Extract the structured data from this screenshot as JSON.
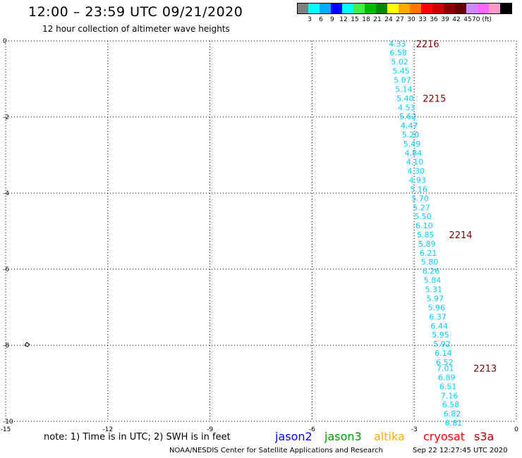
{
  "title": "12:00 – 23:59 UTC 09/21/2020",
  "subtitle": "12 hour collection of altimeter wave heights",
  "colorbar": {
    "colors": [
      "#808080",
      "#00ffff",
      "#00aaff",
      "#0000ff",
      "#00ffff",
      "#44ee44",
      "#00bb00",
      "#008800",
      "#ffff00",
      "#ffaa00",
      "#ff7700",
      "#ff0000",
      "#cc0000",
      "#880000",
      "#660000",
      "#cc88ff",
      "#ff66ff",
      "#ff99cc",
      "#000000"
    ],
    "labels": [
      "3",
      "6",
      "9",
      "12",
      "15",
      "18",
      "21",
      "24",
      "27",
      "30",
      "33",
      "36",
      "39",
      "42",
      "45",
      "70 (ft)"
    ]
  },
  "axes": {
    "x_ticks": [
      "-15",
      "-12",
      "-9",
      "-6",
      "-3",
      "0"
    ],
    "y_ticks": [
      "0",
      "-2",
      "-4",
      "-6",
      "-8",
      "-10"
    ],
    "xlim": [
      -15,
      0
    ],
    "ylim": [
      -10,
      0
    ]
  },
  "chart_data": {
    "type": "scatter",
    "description_units": "longitude (deg) vs latitude (deg); labels are significant wave height (ft)",
    "series": [
      {
        "color": "#00ccff",
        "points": [
          {
            "lon": -3.75,
            "lat": -0.07,
            "swh": "4.33"
          },
          {
            "lon": -3.72,
            "lat": -0.31,
            "swh": "6.58"
          },
          {
            "lon": -3.68,
            "lat": -0.55,
            "swh": "5.02"
          },
          {
            "lon": -3.64,
            "lat": -0.79,
            "swh": "5.45"
          },
          {
            "lon": -3.6,
            "lat": -1.03,
            "swh": "5.07"
          },
          {
            "lon": -3.56,
            "lat": -1.27,
            "swh": "5.14"
          },
          {
            "lon": -3.52,
            "lat": -1.51,
            "swh": "5.40"
          },
          {
            "lon": -3.48,
            "lat": -1.75,
            "swh": "4.53"
          },
          {
            "lon": -3.44,
            "lat": -1.98,
            "swh": "5.62"
          },
          {
            "lon": -3.4,
            "lat": -2.22,
            "swh": "4.47"
          },
          {
            "lon": -3.36,
            "lat": -2.46,
            "swh": "5.20"
          },
          {
            "lon": -3.32,
            "lat": -2.7,
            "swh": "5.49"
          },
          {
            "lon": -3.28,
            "lat": -2.94,
            "swh": "4.84"
          },
          {
            "lon": -3.24,
            "lat": -3.18,
            "swh": "4.10"
          },
          {
            "lon": -3.2,
            "lat": -3.42,
            "swh": "4.30"
          },
          {
            "lon": -3.16,
            "lat": -3.66,
            "swh": "4.93"
          },
          {
            "lon": -3.12,
            "lat": -3.9,
            "swh": "5.16"
          },
          {
            "lon": -3.08,
            "lat": -4.14,
            "swh": "5.70"
          },
          {
            "lon": -3.04,
            "lat": -4.38,
            "swh": "5.27"
          },
          {
            "lon": -3.0,
            "lat": -4.61,
            "swh": "5.50"
          },
          {
            "lon": -2.96,
            "lat": -4.85,
            "swh": "6.10"
          },
          {
            "lon": -2.92,
            "lat": -5.09,
            "swh": "5.85"
          },
          {
            "lon": -2.88,
            "lat": -5.33,
            "swh": "5.89"
          },
          {
            "lon": -2.84,
            "lat": -5.57,
            "swh": "6.21"
          },
          {
            "lon": -2.8,
            "lat": -5.81,
            "swh": "5.80"
          },
          {
            "lon": -2.76,
            "lat": -6.05,
            "swh": "6.26"
          },
          {
            "lon": -2.72,
            "lat": -6.29,
            "swh": "5.84"
          },
          {
            "lon": -2.68,
            "lat": -6.53,
            "swh": "5.31"
          },
          {
            "lon": -2.64,
            "lat": -6.77,
            "swh": "5.97"
          },
          {
            "lon": -2.6,
            "lat": -7.01,
            "swh": "5.96"
          },
          {
            "lon": -2.56,
            "lat": -7.25,
            "swh": "6.37"
          },
          {
            "lon": -2.52,
            "lat": -7.49,
            "swh": "6.44"
          },
          {
            "lon": -2.48,
            "lat": -7.72,
            "swh": "5.95"
          },
          {
            "lon": -2.44,
            "lat": -7.96,
            "swh": "5.92"
          },
          {
            "lon": -2.4,
            "lat": -8.2,
            "swh": "6.14"
          },
          {
            "lon": -2.36,
            "lat": -8.44,
            "swh": "6.52"
          },
          {
            "lon": -2.34,
            "lat": -8.6,
            "swh": "7.01"
          },
          {
            "lon": -2.3,
            "lat": -8.84,
            "swh": "6.89"
          },
          {
            "lon": -2.26,
            "lat": -9.08,
            "swh": "6.51"
          },
          {
            "lon": -2.22,
            "lat": -9.32,
            "swh": "7.16"
          },
          {
            "lon": -2.18,
            "lat": -9.56,
            "swh": "6.58"
          },
          {
            "lon": -2.14,
            "lat": -9.8,
            "swh": "6.82"
          },
          {
            "lon": -2.1,
            "lat": -10.04,
            "swh": "6.81"
          }
        ]
      }
    ],
    "time_labels": [
      {
        "lon": -2.95,
        "lat": -0.07,
        "text": "2216"
      },
      {
        "lon": -2.75,
        "lat": -1.51,
        "text": "2215"
      },
      {
        "lon": -1.98,
        "lat": -5.09,
        "text": "2214"
      },
      {
        "lon": -1.26,
        "lat": -8.6,
        "text": "2213"
      }
    ],
    "time_label_color": "#800000"
  },
  "note": "note:  1) Time is in UTC;  2) SWH is in feet",
  "satellites": [
    {
      "name": "jason2",
      "color": "#0000ff"
    },
    {
      "name": "jason3",
      "color": "#009900"
    },
    {
      "name": "altika",
      "color": "#ffaa00"
    },
    {
      "name": "cryosat",
      "color": "#ff0000"
    },
    {
      "name": "s3a",
      "color": "#aa0000"
    }
  ],
  "footer": {
    "org": "NOAA/NESDIS Center for Satellite Applications and Research",
    "timestamp": "Sep 22 12:27:45 UTC 2020"
  }
}
